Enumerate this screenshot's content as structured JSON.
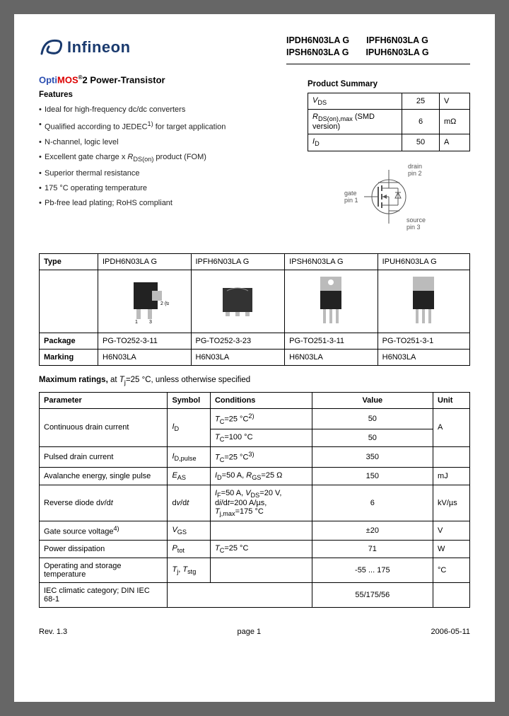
{
  "brand": "Infineon",
  "brand_color": "#1a3a6e",
  "parts": [
    [
      "IPDH6N03LA G",
      "IPFH6N03LA G"
    ],
    [
      "IPSH6N03LA G",
      "IPUH6N03LA G"
    ]
  ],
  "title": {
    "prefix": "Opti",
    "mid": "MOS",
    "sup": "®",
    "suffix": "2 Power-Transistor"
  },
  "features_header": "Features",
  "features": [
    "Ideal for high-frequency dc/dc converters",
    "Qualified according to JEDEC<sup>1)</sup> for target application",
    "N-channel, logic level",
    "Excellent gate charge x <i>R</i><sub>DS(on)</sub> product (FOM)",
    "Superior thermal resistance",
    "175 °C operating temperature",
    "Pb-free lead plating; RoHS compliant"
  ],
  "summary_header": "Product Summary",
  "summary": {
    "rows": [
      {
        "param": "<i>V</i><sub>DS</sub>",
        "value": "25",
        "unit": "V"
      },
      {
        "param": "<i>R</i><sub>DS(on),max</sub> (SMD version)",
        "value": "6",
        "unit": "mΩ"
      },
      {
        "param": "<i>I</i><sub>D</sub>",
        "value": "50",
        "unit": "A"
      }
    ]
  },
  "pin_diagram": {
    "labels": {
      "drain": "drain pin 2",
      "gate": "gate pin 1",
      "source": "source pin 3"
    }
  },
  "types_table": {
    "headers": [
      "Type",
      "IPDH6N03LA G",
      "IPFH6N03LA G",
      "IPSH6N03LA G",
      "IPUH6N03LA G"
    ],
    "package_label": "Package",
    "packages": [
      "PG-TO252-3-11",
      "PG-TO252-3-23",
      "PG-TO251-3-11",
      "PG-TO251-3-1"
    ],
    "marking_label": "Marking",
    "markings": [
      "H6N03LA",
      "H6N03LA",
      "H6N03LA",
      "H6N03LA"
    ]
  },
  "ratings_header": {
    "bold": "Maximum ratings,",
    "rest": " at <i>T</i><sub>j</sub>=25 °C, unless otherwise specified"
  },
  "ratings_cols": [
    "Parameter",
    "Symbol",
    "Conditions",
    "Value",
    "Unit"
  ],
  "ratings": [
    {
      "param": "Continuous drain current",
      "symbol": "<i>I</i><sub>D</sub>",
      "cond": "<i>T</i><sub>C</sub>=25 °C<sup>2)</sup>",
      "value": "50",
      "unit": "A",
      "rowspan_param": 2,
      "rowspan_sym": 2,
      "rowspan_unit": 2
    },
    {
      "cond": "<i>T</i><sub>C</sub>=100 °C",
      "value": "50"
    },
    {
      "param": "Pulsed drain current",
      "symbol": "<i>I</i><sub>D,pulse</sub>",
      "cond": "<i>T</i><sub>C</sub>=25 °C<sup>3)</sup>",
      "value": "350",
      "unit": ""
    },
    {
      "param": "Avalanche energy, single pulse",
      "symbol": "<i>E</i><sub>AS</sub>",
      "cond": "<i>I</i><sub>D</sub>=50 A, <i>R</i><sub>GS</sub>=25 Ω",
      "value": "150",
      "unit": "mJ"
    },
    {
      "param": "Reverse diode d<i>v</i>/d<i>t</i>",
      "symbol": "d<i>v</i>/d<i>t</i>",
      "cond": "<i>I</i><sub>F</sub>=50 A, <i>V</i><sub>DS</sub>=20 V,<br>d<i>i</i>/d<i>t</i>=200 A/µs,<br><i>T</i><sub>j,max</sub>=175 °C",
      "value": "6",
      "unit": "kV/µs"
    },
    {
      "param": "Gate source voltage<sup>4)</sup>",
      "symbol": "<i>V</i><sub>GS</sub>",
      "cond": "",
      "value": "±20",
      "unit": "V"
    },
    {
      "param": "Power dissipation",
      "symbol": "<i>P</i><sub>tot</sub>",
      "cond": "<i>T</i><sub>C</sub>=25 °C",
      "value": "71",
      "unit": "W"
    },
    {
      "param": "Operating and storage temperature",
      "symbol": "<i>T</i><sub>j</sub>, <i>T</i><sub>stg</sub>",
      "cond": "",
      "value": "-55 ... 175",
      "unit": "°C"
    },
    {
      "param": "IEC climatic category; DIN IEC 68-1",
      "symbol": "",
      "cond": "",
      "value": "55/175/56",
      "unit": "",
      "colspan_symcond": 2
    }
  ],
  "footer": {
    "rev": "Rev. 1.3",
    "page": "page 1",
    "date": "2006-05-11"
  }
}
